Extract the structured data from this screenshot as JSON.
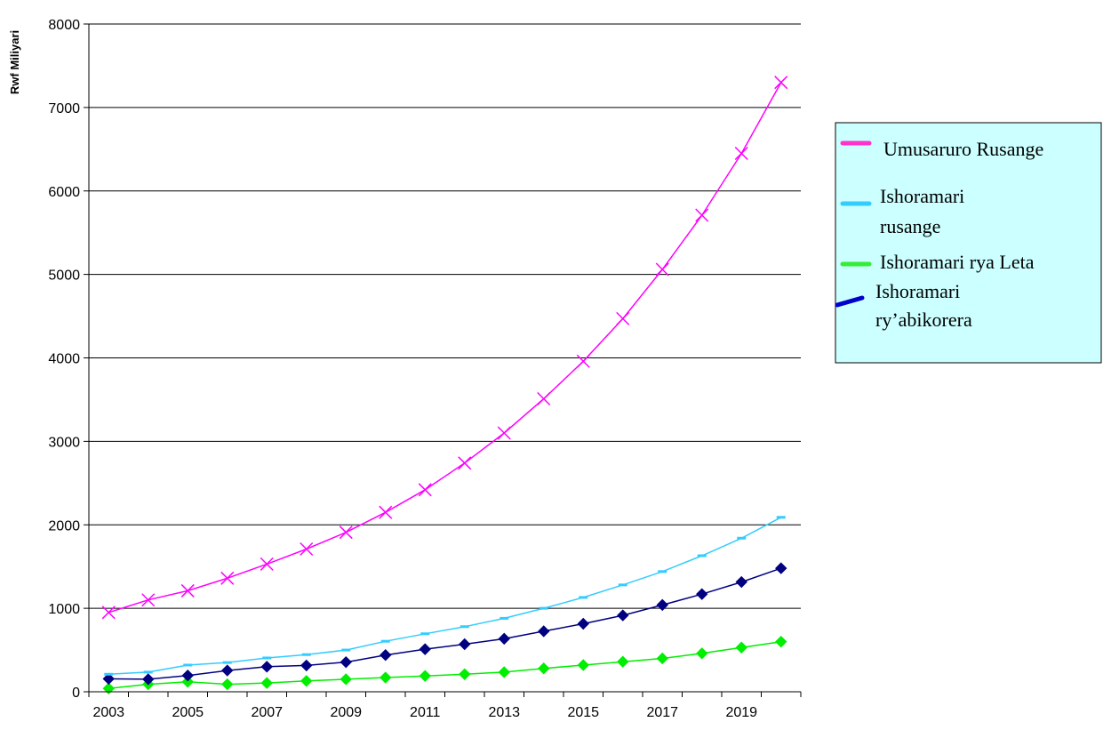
{
  "chart_data": {
    "type": "line",
    "title": "",
    "xlabel": "",
    "ylabel": "Rwf Miliyari",
    "x": [
      2003,
      2004,
      2005,
      2006,
      2007,
      2008,
      2009,
      2010,
      2011,
      2012,
      2013,
      2014,
      2015,
      2016,
      2017,
      2018,
      2019,
      2020
    ],
    "x_tick_labels": [
      "2003",
      "2005",
      "2007",
      "2009",
      "2011",
      "2013",
      "2015",
      "2017",
      "2019"
    ],
    "ylim": [
      0,
      8000
    ],
    "y_ticks": [
      0,
      1000,
      2000,
      3000,
      4000,
      5000,
      6000,
      7000,
      8000
    ],
    "grid": true,
    "legend_position": "right",
    "series": [
      {
        "name": "Umusaruro Rusange",
        "color": "#ff00ff",
        "marker": "x",
        "values": [
          950,
          1100,
          1210,
          1360,
          1530,
          1710,
          1910,
          2150,
          2420,
          2740,
          3100,
          3510,
          3960,
          4470,
          5060,
          5710,
          6450,
          7300
        ]
      },
      {
        "name": "Ishoramari rusange",
        "color": "#33ccff",
        "marker": "dash",
        "values": [
          210,
          235,
          320,
          350,
          405,
          445,
          500,
          605,
          695,
          780,
          880,
          1000,
          1130,
          1280,
          1440,
          1630,
          1840,
          2090
        ]
      },
      {
        "name": "Ishoramari rya Leta",
        "color": "#00ee00",
        "marker": "diamond",
        "values": [
          40,
          90,
          120,
          90,
          105,
          130,
          150,
          170,
          190,
          210,
          235,
          280,
          320,
          360,
          400,
          460,
          530,
          600
        ]
      },
      {
        "name": "Ishoramari ry’abikorera",
        "color": "#000080",
        "marker": "diamond",
        "values": [
          155,
          150,
          195,
          255,
          300,
          315,
          355,
          440,
          510,
          570,
          635,
          725,
          815,
          915,
          1040,
          1170,
          1315,
          1480
        ]
      }
    ],
    "legend_labels": {
      "series0": "Umusaruro Rusange",
      "series1_line1": "Ishoramari",
      "series1_line2": "rusange",
      "series2": "Ishoramari rya Leta",
      "series3_line1": "Ishoramari",
      "series3_line2": "ry’abikorera"
    },
    "legend_colors": {
      "series0": "#ff33cc",
      "series1": "#33ccff",
      "series2": "#33ee33",
      "series3": "#0000cc"
    },
    "legend_background": "#ccffff"
  }
}
